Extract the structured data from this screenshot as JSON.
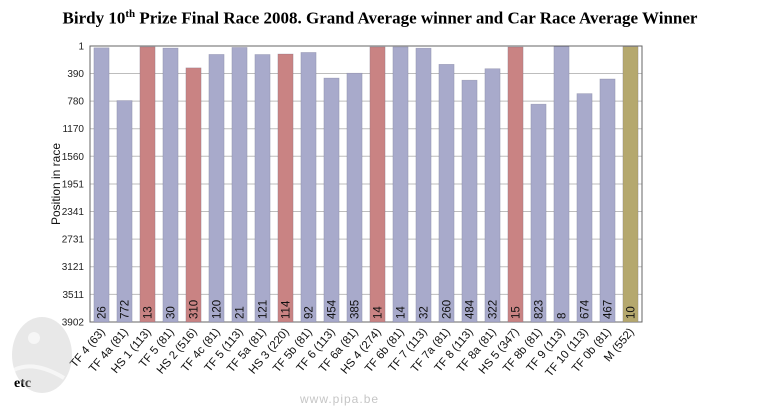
{
  "title_main": "Birdy  10",
  "title_sup": "th",
  "title_rest": " Prize Final Race 2008.  Grand Average winner and Car Race Average Winner",
  "footer_note": "etc",
  "watermark_text": "www.pipa.be",
  "colors": {
    "blue": "#a8aacb",
    "red": "#c98383",
    "gold": "#b5a86e",
    "grid": "#bdbdbd",
    "axis": "#666666"
  },
  "chart_data": {
    "type": "bar",
    "ylabel": "Position in race",
    "y_inverted": true,
    "ylim": [
      1,
      3902
    ],
    "yticks": [
      "1",
      "390",
      "780",
      "1170",
      "1560",
      "1951",
      "2341",
      "2731",
      "3121",
      "3511",
      "3902"
    ],
    "categories": [
      "TF 4 (63)",
      "TF 4a (81)",
      "HS 1 (113)",
      "TF 5 (81)",
      "HS 2 (516)",
      "TF 4c (81)",
      "TF 5 (113)",
      "TF 5a (81)",
      "HS 3 (220)",
      "TF 5b (81)",
      "TF 6 (113)",
      "TF 6a (81)",
      "HS 4 (274)",
      "TF 6b (81)",
      "TF 7 (113)",
      "TF 7a (81)",
      "TF 8 (113)",
      "TF 8a (81)",
      "HS 5 (347)",
      "TF 8b (81)",
      "TF 9 (113)",
      "TF 10 (113)",
      "TF 0b (81)",
      "M (552)"
    ],
    "values": [
      26,
      772,
      13,
      30,
      310,
      120,
      21,
      121,
      114,
      92,
      454,
      385,
      14,
      14,
      32,
      260,
      484,
      322,
      15,
      823,
      8,
      674,
      467,
      10
    ],
    "bar_colors": [
      "blue",
      "blue",
      "red",
      "blue",
      "red",
      "blue",
      "blue",
      "blue",
      "red",
      "blue",
      "blue",
      "blue",
      "red",
      "blue",
      "blue",
      "blue",
      "blue",
      "blue",
      "red",
      "blue",
      "blue",
      "blue",
      "blue",
      "gold"
    ]
  }
}
